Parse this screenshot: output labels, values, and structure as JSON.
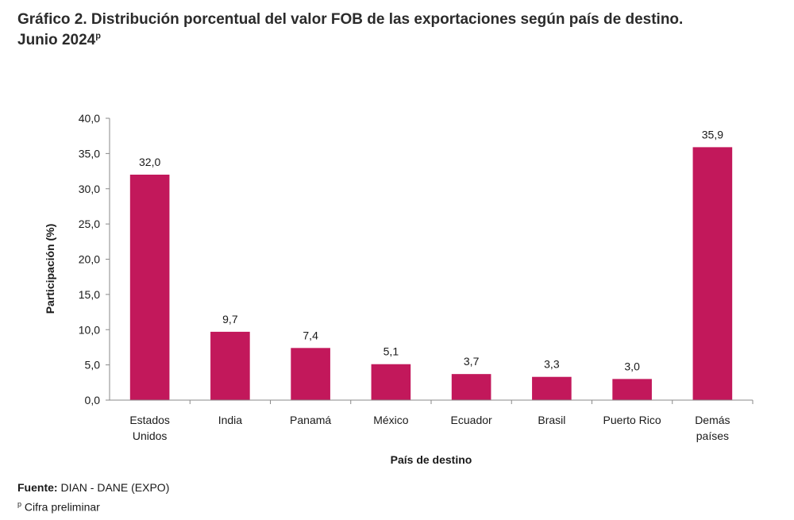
{
  "header": {
    "title_line1": "Gráfico 2. Distribución porcentual del valor FOB de las exportaciones según país de destino.",
    "title_line2": "Junio 2024",
    "title_sup": "p"
  },
  "chart_data": {
    "type": "bar",
    "categories": [
      [
        "Estados",
        "Unidos"
      ],
      [
        "India"
      ],
      [
        "Panamá"
      ],
      [
        "México"
      ],
      [
        "Ecuador"
      ],
      [
        "Brasil"
      ],
      [
        "Puerto Rico"
      ],
      [
        "Demás",
        "países"
      ]
    ],
    "values": [
      32.0,
      9.7,
      7.4,
      5.1,
      3.7,
      3.3,
      3.0,
      35.9
    ],
    "value_labels": [
      "32,0",
      "9,7",
      "7,4",
      "5,1",
      "3,7",
      "3,3",
      "3,0",
      "35,9"
    ],
    "xlabel": "País de destino",
    "ylabel": "Participación (%)",
    "ylim": [
      0,
      40
    ],
    "yticks": [
      "0,0",
      "5,0",
      "10,0",
      "15,0",
      "20,0",
      "25,0",
      "30,0",
      "35,0",
      "40,0"
    ],
    "bar_color": "#c2185b",
    "grid": false,
    "legend": "none"
  },
  "footer": {
    "source_label": "Fuente:",
    "source_value": " DIAN - DANE (EXPO)",
    "note_sup": "p",
    "note_text": " Cifra preliminar"
  }
}
